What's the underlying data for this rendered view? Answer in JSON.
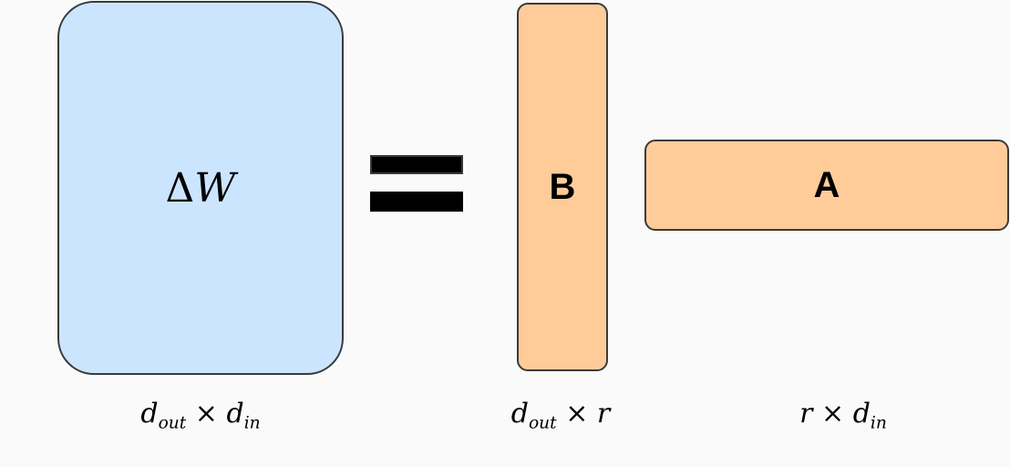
{
  "matrices": {
    "delta_w": {
      "symbol": "Δ",
      "letter": "W",
      "dim_rows": "d",
      "dim_rows_sub": "out",
      "dim_times": "×",
      "dim_cols": "d",
      "dim_cols_sub": "in",
      "color": "#cce5ff"
    },
    "b": {
      "label": "B",
      "dim_rows": "d",
      "dim_rows_sub": "out",
      "dim_times": "×",
      "dim_cols": "r",
      "color": "#ffcc99"
    },
    "a": {
      "label": "A",
      "dim_rows": "r",
      "dim_times": "×",
      "dim_cols": "d",
      "dim_cols_sub": "in",
      "color": "#ffcc99"
    }
  },
  "equals_sign": "equals-icon"
}
